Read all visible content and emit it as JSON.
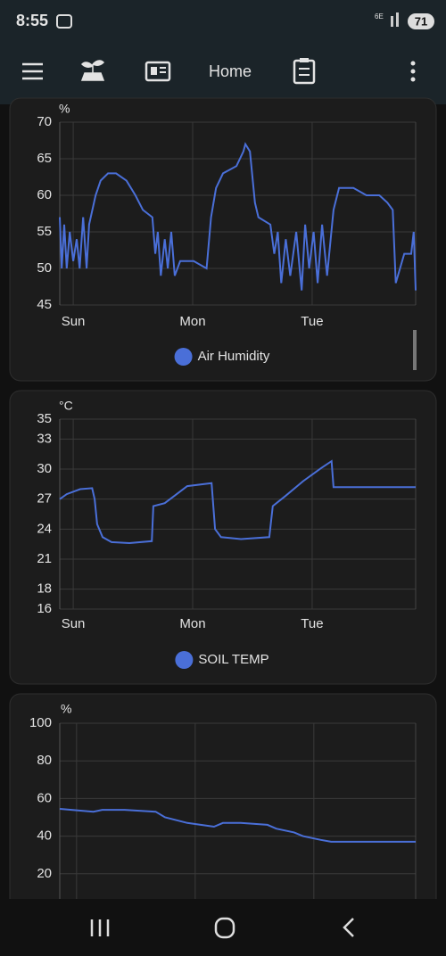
{
  "status_bar": {
    "time": "8:55",
    "network": "6E",
    "battery": "71"
  },
  "toolbar": {
    "title": "Home"
  },
  "chart_data": [
    {
      "type": "line",
      "y_unit": "%",
      "x": [
        -2.7,
        -2.3,
        -1.8,
        -1.3,
        -0.7,
        0,
        0.7,
        1.3,
        2,
        2.7,
        3.2,
        4.5,
        5.5,
        7,
        8.6,
        10.7,
        12.5,
        14,
        15.9,
        16.5,
        17,
        17.6,
        18.4,
        19,
        19.7,
        20.4,
        21.5,
        22.7,
        24.2,
        26.8,
        27.7,
        28.7,
        30.1,
        32.8,
        34.2,
        34.6,
        35.5,
        36.5,
        37.2,
        39.6,
        40.4,
        41.1,
        41.8,
        42.7,
        43.6,
        44.8,
        45.9,
        46.6,
        47.4,
        48.3,
        49.1,
        50,
        51,
        52.3,
        53.4,
        56.3,
        58.9,
        61.5,
        63.1,
        64.2,
        64.8,
        66.5,
        67.9,
        68.4,
        68.8
      ],
      "series": [
        {
          "name": "Air Humidity",
          "color": "#4a6fd8",
          "values": [
            57,
            50,
            56,
            50,
            55,
            51,
            54,
            50,
            57,
            50,
            56,
            60,
            62,
            63,
            63,
            62,
            60,
            58,
            57,
            52,
            55,
            49,
            54,
            50,
            55,
            49,
            51,
            51,
            51,
            50,
            57,
            61,
            63,
            64,
            66,
            67,
            66,
            59,
            57,
            56,
            52,
            55,
            48,
            54,
            49,
            55,
            47,
            56,
            50,
            55,
            48,
            56,
            49,
            58,
            61,
            61,
            60,
            60,
            59,
            58,
            48,
            52,
            52,
            55,
            47
          ]
        }
      ],
      "xlim": [
        -2.7,
        68.8
      ],
      "xticks": [
        {
          "value": 0,
          "label": "Sun"
        },
        {
          "value": 24,
          "label": "Mon"
        },
        {
          "value": 48,
          "label": "Tue"
        }
      ],
      "ylim": [
        45,
        70
      ],
      "yticks": [
        45,
        50,
        55,
        60,
        65,
        70
      ],
      "grid": true
    },
    {
      "type": "line",
      "y_unit": "°C",
      "x": [
        -2.7,
        -1.3,
        1.4,
        3.8,
        4.3,
        4.8,
        5.9,
        7.7,
        11.3,
        15.8,
        16.1,
        18.4,
        20.8,
        22.9,
        27.8,
        28.5,
        29.7,
        33.7,
        39.4,
        40.1,
        42.6,
        46.2,
        49.8,
        51.9,
        52.3,
        68.8
      ],
      "series": [
        {
          "name": "SOIL TEMP",
          "color": "#4a6fd8",
          "values": [
            27,
            27.5,
            28,
            28.1,
            27,
            24.5,
            23.2,
            22.7,
            22.6,
            22.8,
            26.3,
            26.6,
            27.5,
            28.3,
            28.6,
            24,
            23.2,
            23,
            23.2,
            26.3,
            27.3,
            28.8,
            30.1,
            30.8,
            28.2,
            28.2
          ]
        }
      ],
      "xlim": [
        -2.7,
        68.8
      ],
      "xticks": [
        {
          "value": 0,
          "label": "Sun"
        },
        {
          "value": 24,
          "label": "Mon"
        },
        {
          "value": 48,
          "label": "Tue"
        }
      ],
      "ylim": [
        16,
        35
      ],
      "yticks": [
        16,
        18,
        21,
        24,
        27,
        30,
        33,
        35
      ],
      "grid": true
    },
    {
      "type": "line",
      "y_unit": "%",
      "x": [
        -3.4,
        3.4,
        5.2,
        9.7,
        16,
        17.9,
        22.4,
        27.8,
        29.6,
        33.2,
        38.6,
        40.4,
        44,
        45.8,
        49.4,
        51.5,
        68.6
      ],
      "series": [
        {
          "color": "#4a6fd8",
          "values": [
            54.5,
            53,
            54,
            54,
            53,
            50,
            47,
            45,
            47,
            47,
            46,
            44,
            42,
            40,
            38,
            37,
            37
          ]
        }
      ],
      "xlim": [
        -3.4,
        68.6
      ],
      "xticks": [
        0,
        24,
        48
      ],
      "ylim": [
        0,
        100
      ],
      "yticks": [
        20,
        40,
        60,
        80,
        100
      ],
      "grid": true
    }
  ]
}
